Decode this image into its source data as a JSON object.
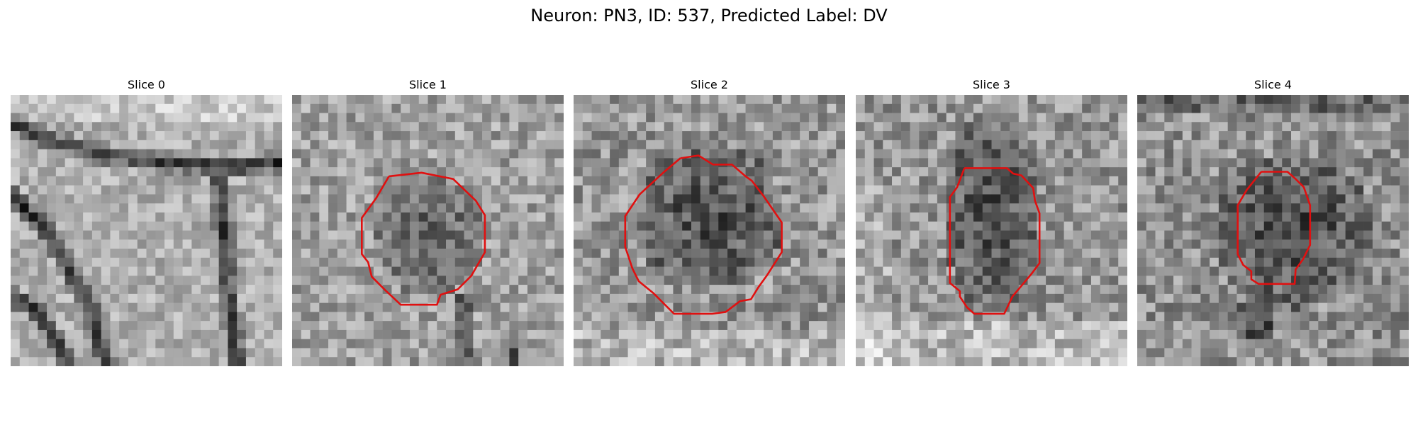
{
  "figure": {
    "title": "Neuron: PN3, ID: 537, Predicted Label: DV",
    "contour_color": "#e01010",
    "colormap": "grayscale",
    "panels": [
      {
        "title": "Slice 0",
        "has_contour": false,
        "description": "gray-noise-with-dark-membrane-lines"
      },
      {
        "title": "Slice 1",
        "has_contour": true
      },
      {
        "title": "Slice 2",
        "has_contour": true
      },
      {
        "title": "Slice 3",
        "has_contour": true
      },
      {
        "title": "Slice 4",
        "has_contour": true
      }
    ]
  }
}
